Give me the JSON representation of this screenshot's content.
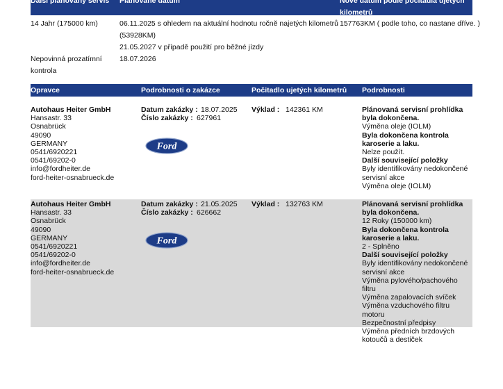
{
  "plan_table": {
    "headers": [
      "Další plánovaný servis",
      "Plánované datum",
      "Nové datum podle počitadla ujetých kilometrů"
    ],
    "rows": [
      {
        "service": [
          "14 Jahr (175000 km)"
        ],
        "date": [
          "06.11.2025 s ohledem na aktuální hodnotu ročně najetých kilometrů",
          "(53928KM)",
          "21.05.2027 v případě použití pro běžné jízdy"
        ],
        "mileage": [
          "157763KM ( podle toho, co nastane dříve. )"
        ]
      },
      {
        "service": [
          "Nepovinná prozatímní",
          "kontrola"
        ],
        "date": [
          "18.07.2026"
        ],
        "mileage": []
      }
    ]
  },
  "history_table": {
    "headers": [
      "Opravce",
      "Podrobnosti o zakázce",
      "Počitadlo ujetých kilometrů",
      "Podrobnosti"
    ],
    "date_label": "Datum zakázky :",
    "order_label": "Číslo zakázky :",
    "mileage_label": "Výklad :",
    "logo_text": "Ford",
    "rows": [
      {
        "dealer": [
          "Autohaus Heiter GmbH",
          "Hansastr. 33",
          "Osnabrück",
          "49090",
          "GERMANY",
          "0541/6920221",
          "0541/69202-0",
          "info@fordheiter.de",
          "ford-heiter-osnabrueck.de"
        ],
        "date": "18.07.2025",
        "order": "627961",
        "mileage": "142361 KM",
        "details": [
          {
            "text": "Plánovaná servisní prohlídka byla dokončena.",
            "bold": true
          },
          {
            "text": "Výměna oleje (IOLM)",
            "bold": false
          },
          {
            "text": "Byla dokončena kontrola karoserie a laku.",
            "bold": true
          },
          {
            "text": "Nelze použít.",
            "bold": false
          },
          {
            "text": "Další související položky",
            "bold": true
          },
          {
            "text": "Byly identifikovány nedokončené servisní akce",
            "bold": false
          },
          {
            "text": "Výměna oleje (IOLM)",
            "bold": false
          }
        ]
      },
      {
        "dealer": [
          "Autohaus Heiter GmbH",
          "Hansastr. 33",
          "Osnabrück",
          "49090",
          "GERMANY",
          "0541/6920221",
          "0541/69202-0",
          "info@fordheiter.de",
          "ford-heiter-osnabrueck.de"
        ],
        "date": "21.05.2025",
        "order": "626662",
        "mileage": "132763 KM",
        "details": [
          {
            "text": "Plánovaná servisní prohlídka byla dokončena.",
            "bold": true
          },
          {
            "text": "12 Roky (150000 km)",
            "bold": false
          },
          {
            "text": "Byla dokončena kontrola karoserie a laku.",
            "bold": true
          },
          {
            "text": "2 - Splněno",
            "bold": false
          },
          {
            "text": "Další související položky",
            "bold": true
          },
          {
            "text": "Byly identifikovány nedokončené servisní akce",
            "bold": false
          },
          {
            "text": "Výměna pylového/pachového filtru",
            "bold": false
          },
          {
            "text": "Výměna zapalovacích svíček",
            "bold": false
          },
          {
            "text": "Výměna vzduchového filtru motoru",
            "bold": false
          },
          {
            "text": "Bezpečnostní předpisy",
            "bold": false
          },
          {
            "text": "Výměna předních brzdových kotoučů a destiček",
            "bold": false
          }
        ]
      }
    ]
  }
}
